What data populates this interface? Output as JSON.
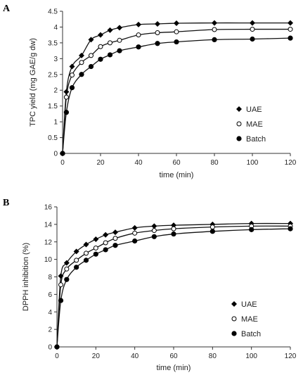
{
  "chart_data": [
    {
      "panel_label": "A",
      "type": "line",
      "xlabel": "time (min)",
      "ylabel": "TPC yield (mg GAE/g dw)",
      "xlim": [
        0,
        120
      ],
      "ylim": [
        0,
        4.5
      ],
      "xticks": [
        "0",
        "20",
        "40",
        "60",
        "80",
        "100",
        "120"
      ],
      "yticks": [
        "0",
        "0.5",
        "1",
        "1.5",
        "2",
        "2.5",
        "3",
        "3.5",
        "4",
        "4.5"
      ],
      "grid": false,
      "legend_position": "right",
      "series": [
        {
          "name": "UAE",
          "marker": "diamond",
          "x": [
            0,
            2,
            5,
            10,
            15,
            20,
            25,
            30,
            40,
            50,
            60,
            80,
            100,
            120
          ],
          "y": [
            0,
            1.95,
            2.75,
            3.1,
            3.6,
            3.75,
            3.9,
            3.98,
            4.08,
            4.1,
            4.12,
            4.13,
            4.13,
            4.13
          ]
        },
        {
          "name": "MAE",
          "marker": "open-circle",
          "x": [
            0,
            2,
            5,
            10,
            15,
            20,
            25,
            30,
            40,
            50,
            60,
            80,
            100,
            120
          ],
          "y": [
            0,
            1.78,
            2.48,
            2.88,
            3.1,
            3.38,
            3.5,
            3.58,
            3.75,
            3.82,
            3.85,
            3.92,
            3.93,
            3.93
          ]
        },
        {
          "name": "Batch",
          "marker": "filled-circle",
          "x": [
            0,
            2,
            5,
            10,
            15,
            20,
            25,
            30,
            40,
            50,
            60,
            80,
            100,
            120
          ],
          "y": [
            0,
            1.3,
            2.08,
            2.5,
            2.75,
            2.98,
            3.12,
            3.25,
            3.37,
            3.48,
            3.53,
            3.6,
            3.62,
            3.65
          ]
        }
      ]
    },
    {
      "panel_label": "B",
      "type": "line",
      "xlabel": "time (min)",
      "ylabel": "DPPH inhibition (%)",
      "xlim": [
        0,
        120
      ],
      "ylim": [
        0,
        16
      ],
      "xticks": [
        "0",
        "20",
        "40",
        "60",
        "80",
        "100",
        "120"
      ],
      "yticks": [
        "0",
        "2",
        "4",
        "6",
        "8",
        "10",
        "12",
        "14",
        "16"
      ],
      "grid": false,
      "legend_position": "bottom-right",
      "series": [
        {
          "name": "UAE",
          "marker": "diamond",
          "x": [
            0,
            2,
            5,
            10,
            15,
            20,
            25,
            30,
            40,
            50,
            60,
            80,
            100,
            120
          ],
          "y": [
            0,
            8.1,
            9.6,
            10.9,
            11.7,
            12.3,
            12.8,
            13.1,
            13.6,
            13.8,
            13.9,
            14.0,
            14.1,
            14.1
          ]
        },
        {
          "name": "MAE",
          "marker": "open-circle",
          "x": [
            0,
            2,
            5,
            10,
            15,
            20,
            25,
            30,
            40,
            50,
            60,
            80,
            100,
            120
          ],
          "y": [
            0,
            7.1,
            8.9,
            9.9,
            10.7,
            11.3,
            11.9,
            12.4,
            13.0,
            13.3,
            13.5,
            13.7,
            13.8,
            13.8
          ]
        },
        {
          "name": "Batch",
          "marker": "filled-circle",
          "x": [
            0,
            2,
            5,
            10,
            15,
            20,
            25,
            30,
            40,
            50,
            60,
            80,
            100,
            120
          ],
          "y": [
            0,
            5.3,
            7.7,
            9.1,
            9.9,
            10.6,
            11.1,
            11.6,
            12.1,
            12.6,
            12.9,
            13.2,
            13.4,
            13.5
          ]
        }
      ]
    }
  ]
}
